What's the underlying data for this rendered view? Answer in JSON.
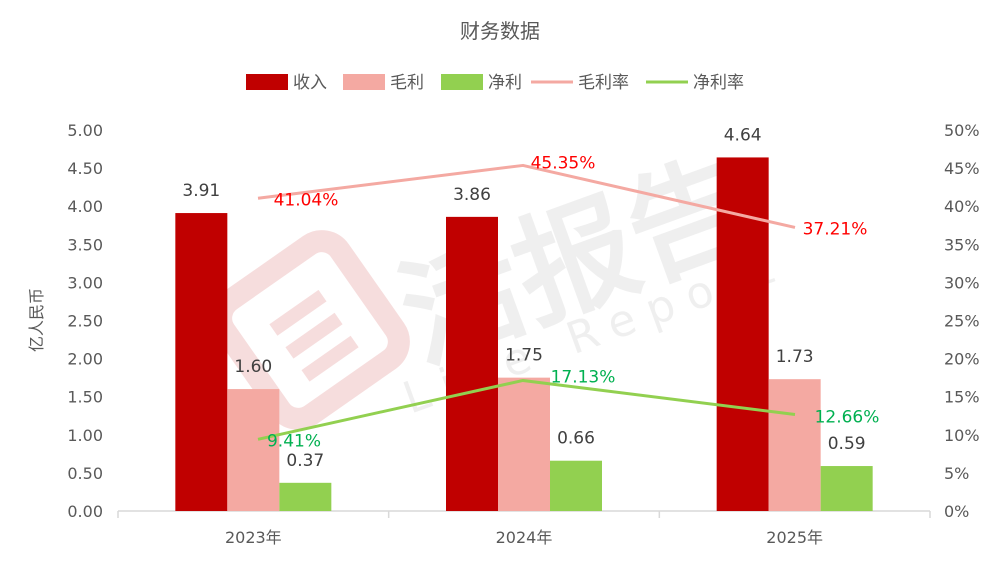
{
  "chart_data": {
    "type": "bar",
    "title": "财务数据",
    "categories": [
      "2023年",
      "2024年",
      "2025年"
    ],
    "ylabel": "亿人民币",
    "ylim": [
      0,
      5
    ],
    "y_ticks": [
      "0.00",
      "0.50",
      "1.00",
      "1.50",
      "2.00",
      "2.50",
      "3.00",
      "3.50",
      "4.00",
      "4.50",
      "5.00"
    ],
    "y2lim": [
      0,
      50
    ],
    "y2_ticks": [
      "0%",
      "5%",
      "10%",
      "15%",
      "20%",
      "25%",
      "30%",
      "35%",
      "40%",
      "45%",
      "50%"
    ],
    "legend_position": "top-center",
    "grid": false,
    "bar_series": [
      {
        "name": "收入",
        "values": [
          3.91,
          3.86,
          4.64
        ],
        "labels": [
          "3.91",
          "3.86",
          "4.64"
        ],
        "color": "#C00000"
      },
      {
        "name": "毛利",
        "values": [
          1.6,
          1.75,
          1.73
        ],
        "labels": [
          "1.60",
          "1.75",
          "1.73"
        ],
        "color": "#F4A9A2"
      },
      {
        "name": "净利",
        "values": [
          0.37,
          0.66,
          0.59
        ],
        "labels": [
          "0.37",
          "0.66",
          "0.59"
        ],
        "color": "#92D050"
      }
    ],
    "line_series": [
      {
        "name": "毛利率",
        "axis": "secondary",
        "values": [
          41.04,
          45.35,
          37.21
        ],
        "labels": [
          "41.04%",
          "45.35%",
          "37.21%"
        ],
        "color": "#F4A9A2",
        "label_color": "#FF0000"
      },
      {
        "name": "净利率",
        "axis": "secondary",
        "values": [
          9.41,
          17.13,
          12.66
        ],
        "labels": [
          "9.41%",
          "17.13%",
          "12.66%"
        ],
        "color": "#92D050",
        "label_color": "#00B050"
      }
    ]
  },
  "watermark": {
    "text": "活报告",
    "subtext": "Live Report"
  }
}
